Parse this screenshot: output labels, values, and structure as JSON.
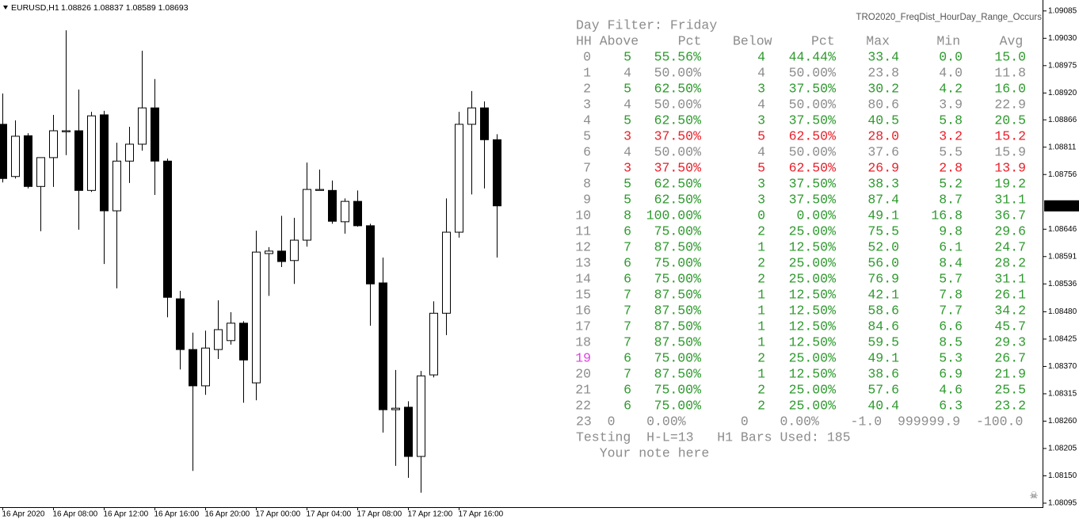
{
  "header": {
    "symbol": "EURUSD,H1",
    "ohlc": "1.08826 1.08837 1.08589 1.08693"
  },
  "indicator_name": "TRO2020_FreqDist_HourDay_Range_Occurs",
  "chart_data": {
    "type": "candlestick",
    "categories": [
      "16 Apr 2020",
      null,
      null,
      null,
      "16 Apr 08:00",
      null,
      null,
      null,
      "16 Apr 12:00",
      null,
      null,
      null,
      "16 Apr 16:00",
      null,
      null,
      null,
      "16 Apr 20:00",
      null,
      null,
      null,
      "17 Apr 00:00",
      null,
      null,
      null,
      "17 Apr 04:00",
      null,
      null,
      null,
      "17 Apr 08:00",
      null,
      null,
      null,
      "17 Apr 12:00",
      null,
      null,
      null,
      "17 Apr 16:00",
      null,
      null,
      null
    ],
    "open": [
      1.08857,
      1.08752,
      1.08834,
      1.08732,
      1.0879,
      1.08842,
      1.08844,
      1.08724,
      1.08876,
      1.08683,
      1.08783,
      1.08817,
      1.0889,
      1.08783,
      1.08506,
      1.08404,
      1.08331,
      1.08404,
      1.08422,
      1.08457,
      1.08337,
      1.08597,
      1.08602,
      1.08583,
      1.08624,
      1.08724,
      1.08724,
      1.08661,
      1.08702,
      1.08653,
      1.08538,
      1.08283,
      1.08288,
      1.08189,
      1.08353,
      1.08477,
      1.0864,
      1.08857,
      1.0889,
      1.08826
    ],
    "high": [
      1.08919,
      1.08865,
      1.08839,
      1.0879,
      1.08876,
      1.09046,
      1.08927,
      1.08882,
      1.08884,
      1.0882,
      1.08852,
      1.09005,
      1.08948,
      1.08788,
      1.08522,
      1.08438,
      1.08442,
      1.08503,
      1.08479,
      1.08461,
      1.08643,
      1.0861,
      1.08673,
      1.08669,
      1.0878,
      1.08766,
      1.08744,
      1.08708,
      1.08724,
      1.08657,
      1.08589,
      1.08363,
      1.083,
      1.08361,
      1.08501,
      1.08708,
      1.08882,
      1.08924,
      1.08903,
      1.08837
    ],
    "low": [
      1.0874,
      1.08748,
      1.08728,
      1.08642,
      1.08731,
      1.08795,
      1.08645,
      1.08721,
      1.08576,
      1.08527,
      1.08739,
      1.08804,
      1.08715,
      1.08469,
      1.08364,
      1.0816,
      1.08313,
      1.08385,
      1.08414,
      1.08297,
      1.08302,
      1.08512,
      1.0857,
      1.08536,
      1.08611,
      1.08724,
      1.08657,
      1.08637,
      1.08651,
      1.08452,
      1.08237,
      1.0817,
      1.08146,
      1.08116,
      1.08348,
      1.08433,
      1.08629,
      1.08716,
      1.08728,
      1.08589
    ],
    "close": [
      1.08748,
      1.08833,
      1.08732,
      1.0879,
      1.08844,
      1.08844,
      1.08724,
      1.08874,
      1.08683,
      1.08783,
      1.08817,
      1.0889,
      1.08783,
      1.08509,
      1.08404,
      1.08331,
      1.08407,
      1.08444,
      1.08457,
      1.08383,
      1.086,
      1.08602,
      1.08581,
      1.08624,
      1.08726,
      1.08726,
      1.08662,
      1.08702,
      1.08653,
      1.08536,
      1.08283,
      1.08286,
      1.08189,
      1.08351,
      1.08477,
      1.0864,
      1.08857,
      1.0889,
      1.08826,
      1.08693
    ],
    "ylim": [
      1.08087,
      1.09107
    ],
    "yticks": [
      1.09085,
      {
        "value": 1.0903,
        "label": "1.09030"
      },
      1.08975,
      {
        "value": 1.0892,
        "label": "1.08920"
      },
      1.08866,
      1.08811,
      1.08756,
      1.08646,
      1.08591,
      1.08536,
      {
        "value": 1.0848,
        "label": "1.08480"
      },
      1.08425,
      {
        "value": 1.0837,
        "label": "1.08370"
      },
      1.08315,
      {
        "value": 1.0826,
        "label": "1.08260"
      },
      1.08205,
      {
        "value": 1.0815,
        "label": "1.08150"
      },
      1.08095
    ],
    "up_color": "#ffffff",
    "down_color": "#000000",
    "current_price": 1.08693
  },
  "table": {
    "title": "Day Filter: Friday",
    "columns": [
      "HH",
      "Above",
      "Pct",
      "Below",
      "Pct",
      "Max",
      "Min",
      "Avg"
    ],
    "text_color": "#8c8c8c",
    "hh_color": "#8c8c8c",
    "rows": [
      {
        "cells": [
          "0",
          "5",
          "55.56%",
          "4",
          "44.44%",
          "33.4",
          "0.0",
          "15.0"
        ],
        "color": "#2e9a2e"
      },
      {
        "cells": [
          "1",
          "4",
          "50.00%",
          "4",
          "50.00%",
          "23.8",
          "4.0",
          "11.8"
        ],
        "color": "#8c8c8c"
      },
      {
        "cells": [
          "2",
          "5",
          "62.50%",
          "3",
          "37.50%",
          "30.2",
          "4.2",
          "16.0"
        ],
        "color": "#2e9a2e"
      },
      {
        "cells": [
          "3",
          "4",
          "50.00%",
          "4",
          "50.00%",
          "80.6",
          "3.9",
          "22.9"
        ],
        "color": "#8c8c8c"
      },
      {
        "cells": [
          "4",
          "5",
          "62.50%",
          "3",
          "37.50%",
          "40.5",
          "5.8",
          "20.5"
        ],
        "color": "#2e9a2e"
      },
      {
        "cells": [
          "5",
          "3",
          "37.50%",
          "5",
          "62.50%",
          "28.0",
          "3.2",
          "15.2"
        ],
        "color": "#e8202a"
      },
      {
        "cells": [
          "6",
          "4",
          "50.00%",
          "4",
          "50.00%",
          "37.6",
          "5.5",
          "15.9"
        ],
        "color": "#8c8c8c"
      },
      {
        "cells": [
          "7",
          "3",
          "37.50%",
          "5",
          "62.50%",
          "26.9",
          "2.8",
          "13.9"
        ],
        "color": "#e8202a"
      },
      {
        "cells": [
          "8",
          "5",
          "62.50%",
          "3",
          "37.50%",
          "38.3",
          "5.2",
          "19.2"
        ],
        "color": "#2e9a2e"
      },
      {
        "cells": [
          "9",
          "5",
          "62.50%",
          "3",
          "37.50%",
          "87.4",
          "8.7",
          "31.1"
        ],
        "color": "#2e9a2e"
      },
      {
        "cells": [
          "10",
          "8",
          "100.00%",
          "0",
          "0.00%",
          "49.1",
          "16.8",
          "36.7"
        ],
        "color": "#2e9a2e"
      },
      {
        "cells": [
          "11",
          "6",
          "75.00%",
          "2",
          "25.00%",
          "75.5",
          "9.8",
          "29.6"
        ],
        "color": "#2e9a2e"
      },
      {
        "cells": [
          "12",
          "7",
          "87.50%",
          "1",
          "12.50%",
          "52.0",
          "6.1",
          "24.7"
        ],
        "color": "#2e9a2e"
      },
      {
        "cells": [
          "13",
          "6",
          "75.00%",
          "2",
          "25.00%",
          "56.0",
          "8.4",
          "28.2"
        ],
        "color": "#2e9a2e"
      },
      {
        "cells": [
          "14",
          "6",
          "75.00%",
          "2",
          "25.00%",
          "76.9",
          "5.7",
          "31.1"
        ],
        "color": "#2e9a2e"
      },
      {
        "cells": [
          "15",
          "7",
          "87.50%",
          "1",
          "12.50%",
          "42.1",
          "7.8",
          "26.1"
        ],
        "color": "#2e9a2e"
      },
      {
        "cells": [
          "16",
          "7",
          "87.50%",
          "1",
          "12.50%",
          "58.6",
          "7.7",
          "34.2"
        ],
        "color": "#2e9a2e"
      },
      {
        "cells": [
          "17",
          "7",
          "87.50%",
          "1",
          "12.50%",
          "84.6",
          "6.6",
          "45.7"
        ],
        "color": "#2e9a2e"
      },
      {
        "cells": [
          "18",
          "7",
          "87.50%",
          "1",
          "12.50%",
          "59.5",
          "8.5",
          "29.3"
        ],
        "color": "#2e9a2e"
      },
      {
        "cells": [
          "19",
          "6",
          "75.00%",
          "2",
          "25.00%",
          "49.1",
          "5.3",
          "26.7"
        ],
        "color": "#2e9a2e",
        "hh_color": "#e040e0"
      },
      {
        "cells": [
          "20",
          "7",
          "87.50%",
          "1",
          "12.50%",
          "38.6",
          "6.9",
          "21.9"
        ],
        "color": "#2e9a2e"
      },
      {
        "cells": [
          "21",
          "6",
          "75.00%",
          "2",
          "25.00%",
          "57.6",
          "4.6",
          "25.5"
        ],
        "color": "#2e9a2e"
      },
      {
        "cells": [
          "22",
          "6",
          "75.00%",
          "2",
          "25.00%",
          "40.4",
          "6.3",
          "23.2"
        ],
        "color": "#2e9a2e"
      }
    ],
    "summary_row": "23  0    0.00%       0    0.00%    -1.0  999999.9  -100.0",
    "footer": "Testing  H-L=13   H1 Bars Used: 185",
    "note": "Your note here"
  }
}
